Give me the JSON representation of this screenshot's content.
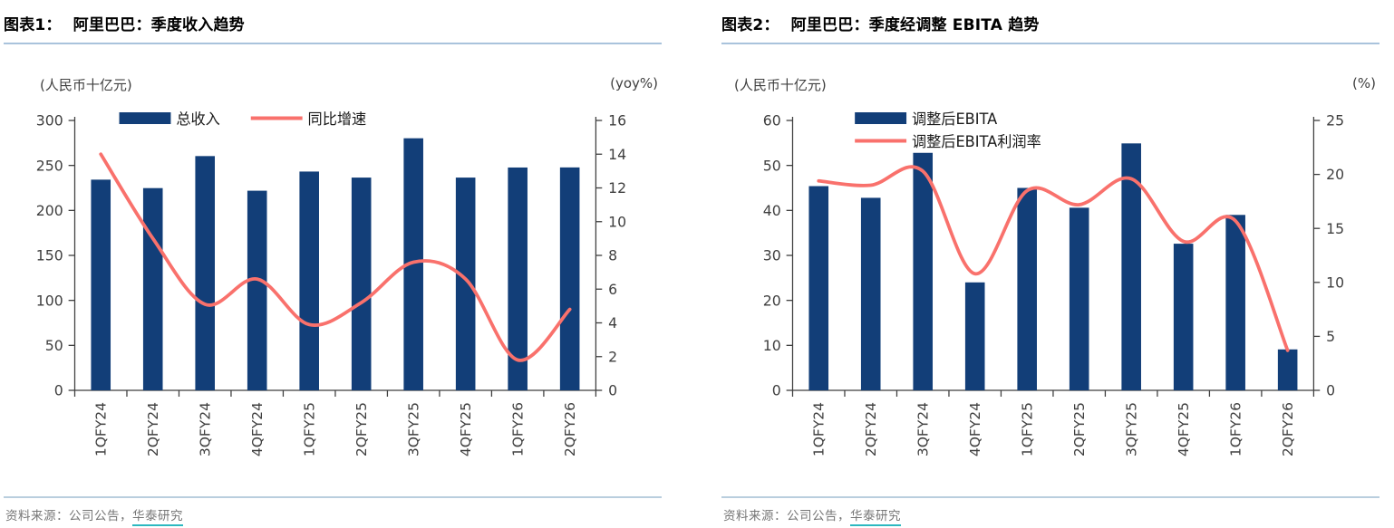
{
  "colors": {
    "bar": "#123e78",
    "line": "#f9716c",
    "axis": "#3f3f3f",
    "axis_text": "#3f3f3f",
    "legend_text": "#1a1a1a",
    "title_rule": "#a9c3dc",
    "source_rule": "#b9cede",
    "link_underline": "#2cb8c0"
  },
  "source": {
    "prefix": "资料来源：公司公告，",
    "link_text": "华泰研究"
  },
  "charts": [
    {
      "title_prefix": "图表1：",
      "title_text": "阿里巴巴：季度收入趋势",
      "unit_left": "(人民币十亿元)",
      "unit_right": "(yoy%)",
      "chart_data": {
        "type": "bar+line",
        "title": "阿里巴巴：季度收入趋势",
        "categories": [
          "1QFY24",
          "2QFY24",
          "3QFY24",
          "4QFY24",
          "1QFY25",
          "2QFY25",
          "3QFY25",
          "4QFY25",
          "1QFY26",
          "2QFY26"
        ],
        "series": [
          {
            "name": "总收入",
            "type": "bar",
            "axis": "left",
            "values": [
              234.2,
              224.8,
              260.4,
              221.9,
              243.2,
              236.5,
              280.2,
              236.5,
              247.7,
              247.8
            ]
          },
          {
            "name": "同比增速",
            "type": "line",
            "axis": "right",
            "values": [
              14.0,
              9.0,
              5.1,
              6.6,
              3.9,
              5.2,
              7.6,
              6.6,
              1.8,
              4.8
            ]
          }
        ],
        "left_axis": {
          "label": "(人民币十亿元)",
          "min": 0,
          "max": 300,
          "step": 50
        },
        "right_axis": {
          "label": "(yoy%)",
          "min": 0,
          "max": 16,
          "step": 2
        },
        "legend_position": "top-inside",
        "legend_rows": 1,
        "grid": false
      }
    },
    {
      "title_prefix": "图表2：",
      "title_text": "阿里巴巴：季度经调整 EBITA 趋势",
      "unit_left": "(人民币十亿元)",
      "unit_right": "(%)",
      "chart_data": {
        "type": "bar+line",
        "title": "阿里巴巴：季度经调整 EBITA 趋势",
        "categories": [
          "1QFY24",
          "2QFY24",
          "3QFY24",
          "4QFY24",
          "1QFY25",
          "2QFY25",
          "3QFY25",
          "4QFY25",
          "1QFY26",
          "2QFY26"
        ],
        "series": [
          {
            "name": "调整后EBITA",
            "type": "bar",
            "axis": "left",
            "values": [
              45.4,
              42.8,
              52.8,
              24.0,
              45.0,
              40.6,
              54.9,
              32.6,
              39.0,
              9.1
            ]
          },
          {
            "name": "调整后EBITA利润率",
            "type": "line",
            "axis": "right",
            "values": [
              19.4,
              19.0,
              20.3,
              10.8,
              18.5,
              17.2,
              19.6,
              13.8,
              15.7,
              3.7
            ]
          }
        ],
        "left_axis": {
          "label": "(人民币十亿元)",
          "min": 0,
          "max": 60,
          "step": 10
        },
        "right_axis": {
          "label": "(%)",
          "min": 0,
          "max": 25,
          "step": 5
        },
        "legend_position": "top-inside",
        "legend_rows": 2,
        "grid": false
      }
    }
  ]
}
